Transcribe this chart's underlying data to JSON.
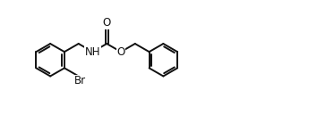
{
  "background": "#ffffff",
  "line_color": "#111111",
  "line_width": 1.4,
  "font_size": 8.5,
  "figure_size": [
    3.54,
    1.38
  ],
  "dpi": 100,
  "xlim": [
    0,
    10
  ],
  "ylim": [
    0,
    3.9
  ]
}
